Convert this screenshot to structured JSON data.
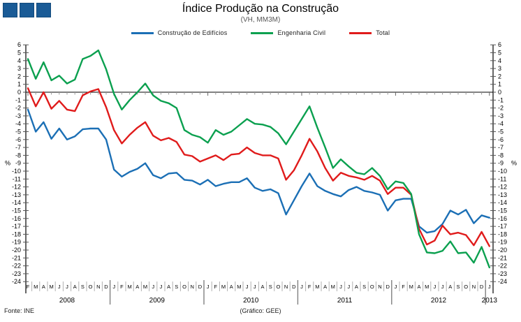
{
  "logo": {
    "square_count": 3,
    "square_color": "#1A5B96"
  },
  "header": {
    "title": "Índice Produção na Construção",
    "subtitle": "(VH, MM3M)"
  },
  "legend": [
    {
      "label": "Construção de Edifícios",
      "color": "#1B6FB5"
    },
    {
      "label": "Engenharia Civil",
      "color": "#0BA04F"
    },
    {
      "label": "Total",
      "color": "#E01B1B"
    }
  ],
  "footer": {
    "source": "Fonte: INE",
    "credit": "(Gráfico:  GEE)"
  },
  "chart_data": {
    "type": "line",
    "title": "Índice Produção na Construção",
    "subtitle": "(VH, MM3M)",
    "xlabel": "",
    "ylabel": "%",
    "ylim": [
      -24,
      6
    ],
    "ytick_step": 1,
    "percent_label_at": -9,
    "grid": false,
    "zero_line": true,
    "legend_position": "top",
    "x_months": [
      "F",
      "M",
      "A",
      "M",
      "J",
      "J",
      "A",
      "S",
      "O",
      "N",
      "D",
      "J",
      "F",
      "M",
      "A",
      "M",
      "J",
      "J",
      "A",
      "S",
      "O",
      "N",
      "D",
      "J",
      "F",
      "M",
      "A",
      "M",
      "J",
      "J",
      "A",
      "S",
      "O",
      "N",
      "D",
      "J",
      "F",
      "M",
      "A",
      "M",
      "J",
      "J",
      "A",
      "S",
      "O",
      "N",
      "D",
      "J",
      "F",
      "M",
      "A",
      "M",
      "J",
      "J",
      "A",
      "S",
      "O",
      "N",
      "D",
      "J"
    ],
    "years": [
      {
        "label": "2008",
        "start": 0,
        "count": 11
      },
      {
        "label": "2009",
        "start": 11,
        "count": 12
      },
      {
        "label": "2010",
        "start": 23,
        "count": 12
      },
      {
        "label": "2011",
        "start": 35,
        "count": 12
      },
      {
        "label": "2012",
        "start": 47,
        "count": 12
      },
      {
        "label": "2013",
        "start": 59,
        "count": 1
      }
    ],
    "series": [
      {
        "name": "Construção de Edifícios",
        "color": "#1B6FB5",
        "values": [
          -2.2,
          -5.0,
          -3.8,
          -5.9,
          -4.6,
          -6.0,
          -5.6,
          -4.7,
          -4.6,
          -4.6,
          -6.0,
          -9.8,
          -10.7,
          -10.1,
          -9.7,
          -9.0,
          -10.5,
          -10.9,
          -10.3,
          -10.2,
          -11.1,
          -11.2,
          -11.7,
          -11.1,
          -11.9,
          -11.6,
          -11.4,
          -11.4,
          -10.9,
          -12.1,
          -12.5,
          -12.3,
          -12.8,
          -15.5,
          -13.7,
          -11.9,
          -10.3,
          -11.9,
          -12.5,
          -12.9,
          -13.2,
          -12.4,
          -12.0,
          -12.5,
          -12.7,
          -13.0,
          -15.0,
          -13.7,
          -13.5,
          -13.5,
          -17.0,
          -17.8,
          -17.6,
          -16.7,
          -15.0,
          -15.5,
          -14.9,
          -16.6,
          -15.6,
          -15.9
        ]
      },
      {
        "name": "Engenharia Civil",
        "color": "#0BA04F",
        "values": [
          4.2,
          1.7,
          3.8,
          1.5,
          2.1,
          1.1,
          1.6,
          4.2,
          4.6,
          5.3,
          2.9,
          -0.2,
          -2.2,
          -1.0,
          0.0,
          1.1,
          -0.4,
          -1.1,
          -1.4,
          -2.0,
          -4.8,
          -5.4,
          -5.7,
          -6.4,
          -4.8,
          -5.4,
          -5.0,
          -4.2,
          -3.4,
          -4.0,
          -4.1,
          -4.4,
          -5.2,
          -6.6,
          -5.0,
          -3.4,
          -1.8,
          -4.5,
          -7.0,
          -9.6,
          -8.5,
          -9.4,
          -10.2,
          -10.4,
          -9.6,
          -10.6,
          -12.3,
          -11.3,
          -11.5,
          -12.9,
          -18.0,
          -20.3,
          -20.4,
          -20.1,
          -18.9,
          -20.4,
          -20.3,
          -21.6,
          -19.6,
          -22.2
        ]
      },
      {
        "name": "Total",
        "color": "#E01B1B",
        "values": [
          0.5,
          -1.8,
          0.0,
          -2.1,
          -1.1,
          -2.2,
          -2.4,
          -0.4,
          0.1,
          0.4,
          -1.9,
          -4.8,
          -6.5,
          -5.4,
          -4.5,
          -3.8,
          -5.5,
          -6.1,
          -5.8,
          -6.3,
          -7.9,
          -8.1,
          -8.8,
          -8.4,
          -8.0,
          -8.6,
          -7.9,
          -7.8,
          -7.0,
          -7.7,
          -8.0,
          -8.0,
          -8.4,
          -11.1,
          -9.9,
          -8.0,
          -5.9,
          -7.5,
          -9.6,
          -11.2,
          -10.2,
          -10.6,
          -10.8,
          -11.1,
          -10.6,
          -11.2,
          -12.9,
          -12.1,
          -12.1,
          -13.0,
          -17.3,
          -19.3,
          -18.8,
          -16.9,
          -18.0,
          -17.8,
          -18.1,
          -19.4,
          -17.7,
          -19.5
        ]
      }
    ]
  }
}
